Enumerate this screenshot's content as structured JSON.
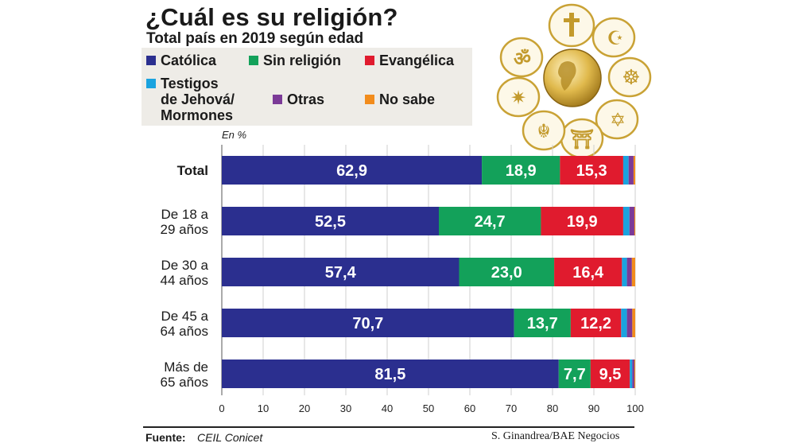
{
  "title": "¿Cuál es su religión?",
  "subtitle": "Total país en 2019 según edad",
  "legend": [
    {
      "label": "Católica",
      "color": "#2b2f8f"
    },
    {
      "label": "Sin religión",
      "color": "#13a15a"
    },
    {
      "label": "Evangélica",
      "color": "#e01b2e"
    },
    {
      "label": "Testigos de Jehová/ Mormones",
      "line1": "Testigos",
      "line2": "de Jehová/",
      "line3": "Mormones",
      "color": "#1aa3df"
    },
    {
      "label": "Otras",
      "color": "#7b3a97"
    },
    {
      "label": "No sabe",
      "color": "#f28c1c"
    }
  ],
  "chart_data": {
    "type": "bar",
    "orientation": "horizontal",
    "stacked": true,
    "unit_label": "En %",
    "categories": [
      "Total",
      "De 18 a 29 años",
      "De 30 a 44 años",
      "De 45 a 64 años",
      "Más de 65 años"
    ],
    "category_lines": [
      [
        "Total"
      ],
      [
        "De 18 a",
        "29 años"
      ],
      [
        "De 30 a",
        "44 años"
      ],
      [
        "De 45 a",
        "64 años"
      ],
      [
        "Más de",
        "65 años"
      ]
    ],
    "series": [
      {
        "name": "Católica",
        "values": [
          62.9,
          52.5,
          57.4,
          70.7,
          81.5
        ],
        "labels": [
          "62,9",
          "52,5",
          "57,4",
          "70,7",
          "81,5"
        ]
      },
      {
        "name": "Sin religión",
        "values": [
          18.9,
          24.7,
          23.0,
          13.7,
          7.7
        ],
        "labels": [
          "18,9",
          "24,7",
          "23,0",
          "13,7",
          "7,7"
        ]
      },
      {
        "name": "Evangélica",
        "values": [
          15.3,
          19.9,
          16.4,
          12.2,
          9.5
        ],
        "labels": [
          "15,3",
          "19,9",
          "16,4",
          "12,2",
          "9,5"
        ]
      },
      {
        "name": "Testigos de Jehová/ Mormones",
        "values": [
          1.3,
          1.5,
          1.2,
          1.4,
          0.6
        ]
      },
      {
        "name": "Otras",
        "values": [
          1.2,
          1.2,
          1.2,
          1.3,
          0.5
        ]
      },
      {
        "name": "No sabe",
        "values": [
          0.4,
          0.2,
          0.8,
          0.7,
          0.2
        ]
      }
    ],
    "xlim": [
      0,
      100
    ],
    "xticks": [
      0,
      10,
      20,
      30,
      40,
      50,
      60,
      70,
      80,
      90,
      100
    ],
    "grid": true
  },
  "footer": {
    "source_label": "Fuente:",
    "source_value": "CEIL Conicet",
    "credit": "S. Ginandrea/BAE Negocios"
  },
  "emblem": {
    "name": "religious symbols around a golden globe"
  }
}
